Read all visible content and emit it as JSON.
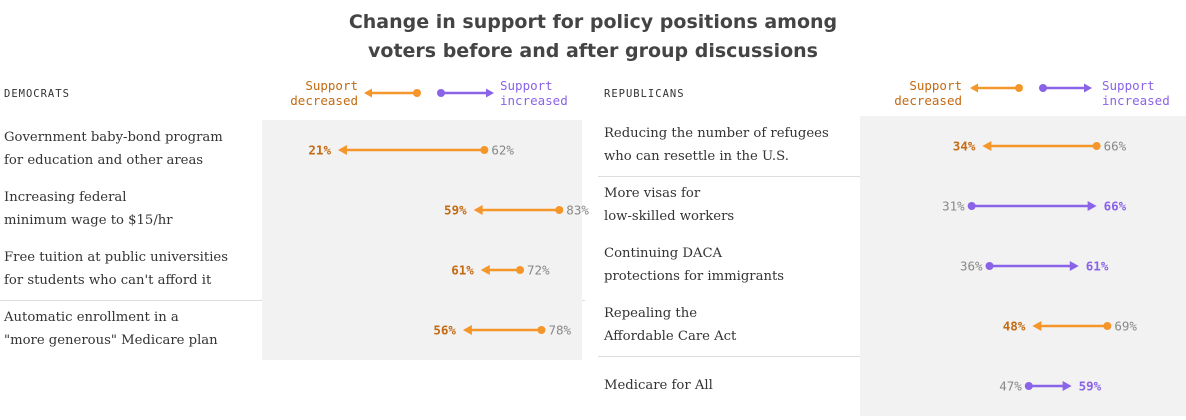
{
  "title": [
    "Change in support for policy positions among",
    "voters before and after group discussions"
  ],
  "legend": {
    "decreased": [
      "Support",
      "decreased"
    ],
    "increased": [
      "Support",
      "increased"
    ]
  },
  "colors": {
    "decrease": "#f5962b",
    "decrease_text": "#c46a12",
    "increase": "#8a63e8",
    "before_text": "#888888"
  },
  "chart_data": [
    {
      "type": "dumbbell",
      "panel": "DEMOCRATS",
      "value_unit": "percent support",
      "categories": [
        [
          "Government baby-bond program",
          "for education and other areas"
        ],
        [
          "Increasing federal",
          "minimum wage to $15/hr"
        ],
        [
          "Free tuition at public universities",
          "for students who can't afford it"
        ],
        [
          "Automatic enrollment in a",
          "\"more generous\" Medicare plan"
        ]
      ],
      "series": [
        {
          "name": "before",
          "values": [
            62,
            83,
            72,
            78
          ]
        },
        {
          "name": "after",
          "values": [
            21,
            59,
            61,
            56
          ]
        }
      ],
      "labels_before": [
        "62%",
        "83%",
        "72%",
        "78%"
      ],
      "labels_after": [
        "21%",
        "59%",
        "61%",
        "56%"
      ]
    },
    {
      "type": "dumbbell",
      "panel": "REPUBLICANS",
      "value_unit": "percent support",
      "categories": [
        [
          "Reducing the number of refugees",
          "who can resettle in the U.S."
        ],
        [
          "More visas for",
          "low-skilled workers"
        ],
        [
          "Continuing DACA",
          "protections for immigrants"
        ],
        [
          "Repealing the",
          "Affordable Care Act"
        ],
        [
          "Medicare for All"
        ]
      ],
      "series": [
        {
          "name": "before",
          "values": [
            66,
            31,
            36,
            69,
            47
          ]
        },
        {
          "name": "after",
          "values": [
            34,
            66,
            61,
            48,
            59
          ]
        }
      ],
      "labels_before": [
        "66%",
        "31%",
        "36%",
        "69%",
        "47%"
      ],
      "labels_after": [
        "34%",
        "66%",
        "61%",
        "48%",
        "59%"
      ]
    }
  ]
}
